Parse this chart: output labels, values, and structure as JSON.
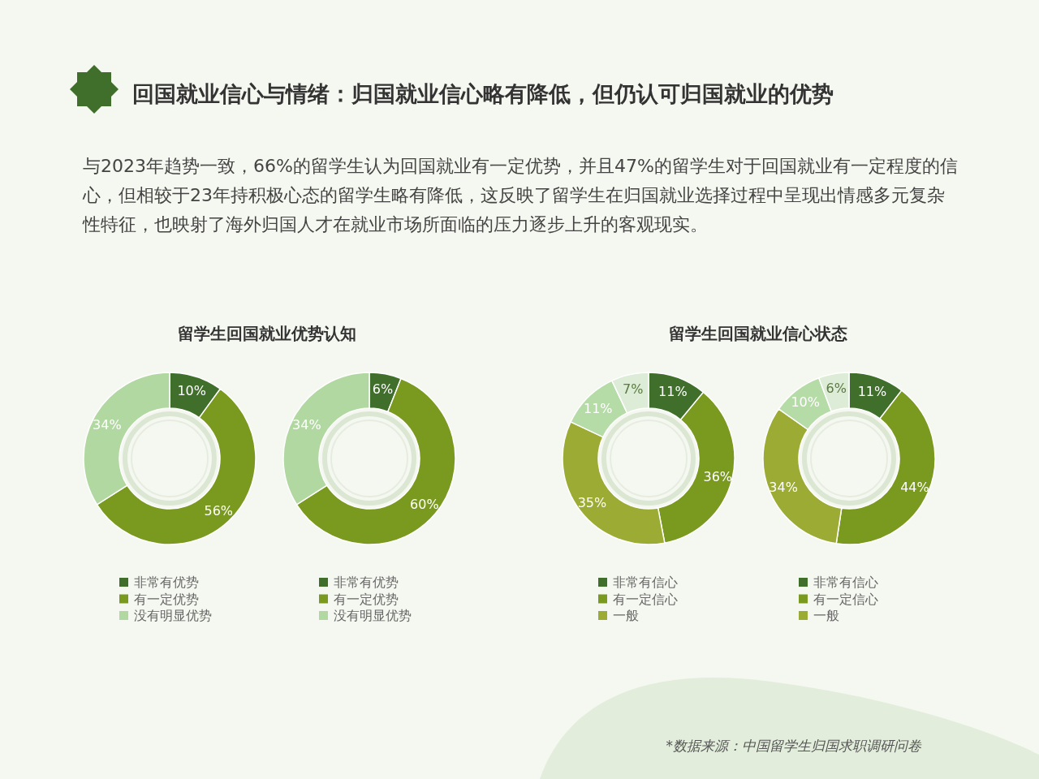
{
  "chart_data": [
    {
      "type": "donut",
      "title": "留学生回国就业优势认知",
      "annotations": [
        "回国就业信心与情绪：归国就业信心略有降低，但仍认可归国就业的优势",
        "与2023年趋势一致，66%的留学生认为回国就业有一定优势，并且47%的留学生对于回国就业有一定程度的信心，但相较于23年持积极心态的留学生略有降低，这反映了留学生在归国就业选择过程中呈现出情感多元复杂性特征，也映射了海外归国人才在就业市场所面临的压力逐步上升的客观现实。"
      ],
      "categories": [
        "非常有优势",
        "有一定优势",
        "没有明显优势"
      ],
      "values": [
        10,
        56,
        34
      ],
      "value_labels": [
        "10%",
        "56%",
        "34%"
      ],
      "colors": [
        "#3f6f2a",
        "#7a991f",
        "#b2d8a2"
      ],
      "legend": "bottom"
    },
    {
      "type": "donut",
      "categories": [
        "非常有优势",
        "有一定优势",
        "没有明显优势"
      ],
      "values": [
        6,
        60,
        34
      ],
      "value_labels": [
        "6%",
        "60%",
        "34%"
      ],
      "colors": [
        "#3f6f2a",
        "#7a991f",
        "#b2d8a2"
      ],
      "legend": "bottom"
    },
    {
      "type": "donut",
      "title": "留学生回国就业信心状态",
      "categories": [
        "非常有信心",
        "有一定信心",
        "一般",
        null,
        null
      ],
      "values": [
        11,
        36,
        35,
        11,
        7
      ],
      "value_labels": [
        "11%",
        "36%",
        "35%",
        "11%",
        "7%"
      ],
      "colors": [
        "#3f6f2a",
        "#7a991f",
        "#9bab33",
        "#b5dba6",
        "#dcecd6"
      ],
      "legend": "bottom"
    },
    {
      "type": "donut",
      "annotations": [
        "*数据来源：中国留学生归国求职调研问卷"
      ],
      "categories": [
        "非常有信心",
        "有一定信心",
        "一般",
        null,
        null
      ],
      "values": [
        11,
        44,
        34,
        10,
        6
      ],
      "value_labels": [
        "11%",
        "44%",
        "34%",
        "10%",
        "6%"
      ],
      "colors": [
        "#3f6f2a",
        "#7a991f",
        "#9bab33",
        "#b5dba6",
        "#dcecd6"
      ],
      "legend": "bottom"
    }
  ]
}
